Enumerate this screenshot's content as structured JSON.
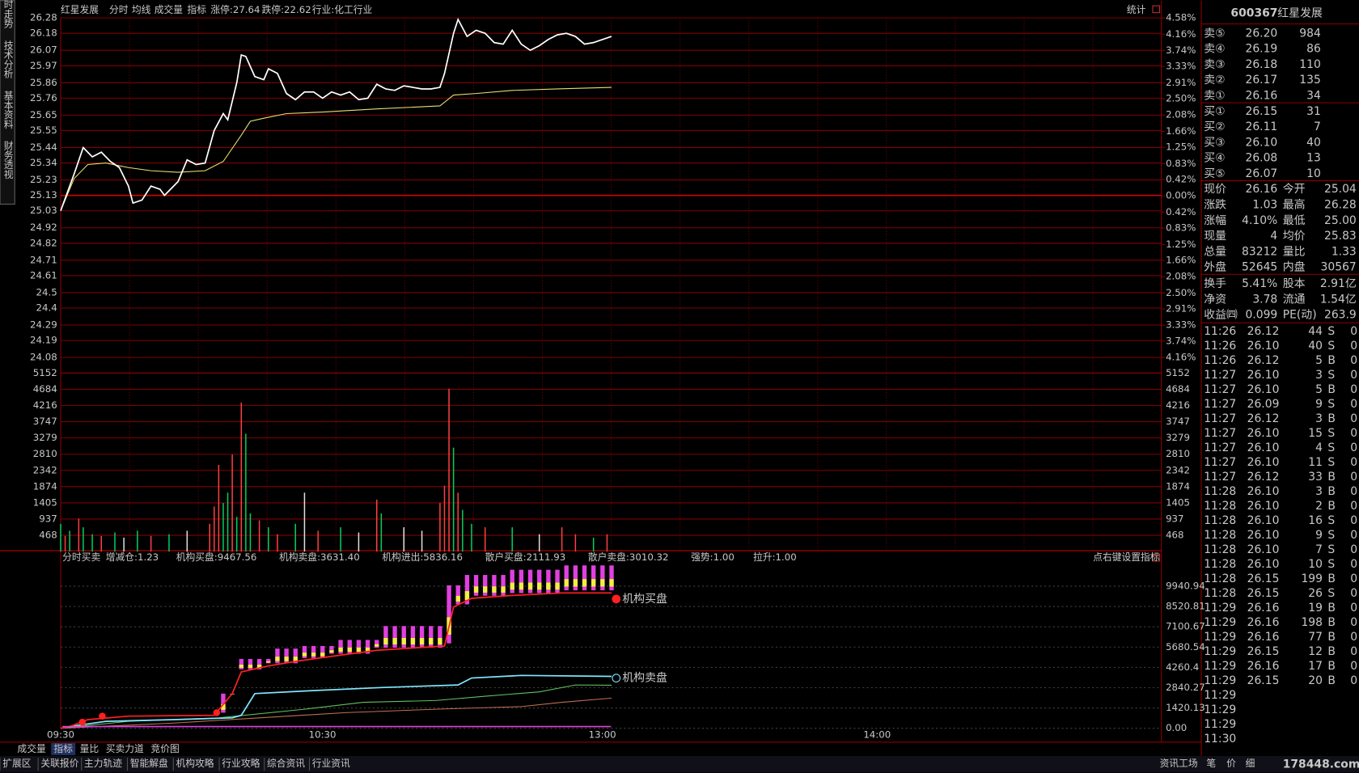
{
  "toolbar": {
    "stock": "红星发展",
    "volume_tab": "成交量",
    "indicator_tab": "指标",
    "limit_up": "涨停:27.64",
    "limit_down": "跌停:22.62",
    "industry": "行业:化工行业",
    "stats": "统计"
  },
  "side_tabs": [
    "分时走势",
    "技术分析",
    "基本资料",
    "财务透视"
  ],
  "chart_data": [
    {
      "type": "line",
      "series": [
        {
          "name": "分时",
          "color": "#ffffff",
          "x": [
            0,
            3,
            5,
            7,
            9,
            11,
            13,
            15,
            16,
            18,
            20,
            22,
            23,
            26,
            28,
            30,
            32,
            34,
            36,
            37,
            39,
            40,
            41,
            43,
            45,
            46,
            48,
            50,
            52,
            54,
            56,
            58,
            60,
            62,
            64,
            66,
            68,
            70,
            72,
            74,
            76,
            78,
            80,
            82,
            84,
            85,
            87,
            88,
            90,
            92,
            94,
            96,
            98,
            100,
            102,
            104,
            106,
            108,
            110,
            112,
            114,
            116,
            118,
            120,
            121,
            122
          ],
          "values": [
            25.03,
            25.27,
            25.44,
            25.38,
            25.41,
            25.35,
            25.31,
            25.19,
            25.08,
            25.1,
            25.19,
            25.17,
            25.13,
            25.22,
            25.36,
            25.33,
            25.34,
            25.55,
            25.66,
            25.62,
            25.86,
            26.04,
            26.03,
            25.9,
            25.88,
            25.95,
            25.92,
            25.79,
            25.75,
            25.8,
            25.8,
            25.76,
            25.8,
            25.78,
            25.8,
            25.75,
            25.76,
            25.85,
            25.82,
            25.81,
            25.84,
            25.83,
            25.82,
            25.82,
            25.83,
            25.92,
            26.18,
            26.27,
            26.16,
            26.2,
            26.18,
            26.12,
            26.11,
            26.2,
            26.11,
            26.07,
            26.1,
            26.14,
            26.17,
            26.18,
            26.16,
            26.11,
            26.12,
            26.14,
            26.15,
            26.16
          ]
        },
        {
          "name": "均线",
          "color": "#e8e070",
          "x": [
            0,
            3,
            6,
            10,
            15,
            20,
            26,
            32,
            36,
            40,
            42,
            45,
            50,
            58,
            70,
            84,
            87,
            92,
            100,
            110,
            122
          ],
          "values": [
            25.03,
            25.24,
            25.33,
            25.34,
            25.31,
            25.29,
            25.28,
            25.29,
            25.35,
            25.52,
            25.61,
            25.63,
            25.66,
            25.67,
            25.69,
            25.71,
            25.78,
            25.79,
            25.81,
            25.82,
            25.83
          ]
        }
      ],
      "ylim": [
        24.08,
        26.28
      ],
      "yticks": [
        26.28,
        26.18,
        26.07,
        25.97,
        25.86,
        25.76,
        25.65,
        25.55,
        25.44,
        25.34,
        25.23,
        25.13,
        25.03,
        24.92,
        24.82,
        24.71,
        24.61,
        24.5,
        24.4,
        24.29,
        24.19,
        24.08
      ],
      "y2lim": [
        -4.16,
        4.58
      ],
      "y2ticks": [
        {
          "value": 4.58,
          "label": "4.58%"
        },
        {
          "value": 4.16,
          "label": "4.16%"
        },
        {
          "value": 3.74,
          "label": "3.74%"
        },
        {
          "value": 3.33,
          "label": "3.33%"
        },
        {
          "value": 2.91,
          "label": "2.91%"
        },
        {
          "value": 2.5,
          "label": "2.50%"
        },
        {
          "value": 2.08,
          "label": "2.08%"
        },
        {
          "value": 1.66,
          "label": "1.66%"
        },
        {
          "value": 1.25,
          "label": "1.25%"
        },
        {
          "value": 0.83,
          "label": "0.83%"
        },
        {
          "value": 0.42,
          "label": "0.42%"
        },
        {
          "value": 0,
          "label": "0.00%"
        },
        {
          "value": -0.42,
          "label": "0.42%"
        },
        {
          "value": -0.83,
          "label": "0.83%"
        },
        {
          "value": -1.25,
          "label": "1.25%"
        },
        {
          "value": -1.66,
          "label": "1.66%"
        },
        {
          "value": -2.08,
          "label": "2.08%"
        },
        {
          "value": -2.5,
          "label": "2.50%"
        },
        {
          "value": -2.91,
          "label": "2.91%"
        },
        {
          "value": -3.33,
          "label": "3.33%"
        },
        {
          "value": -3.74,
          "label": "3.74%"
        },
        {
          "value": -4.16,
          "label": "4.16%"
        }
      ],
      "grid": true
    },
    {
      "type": "bar",
      "series": [
        {
          "name": "成交量",
          "x": [
            0,
            1,
            2,
            4,
            5,
            7,
            9,
            12,
            14,
            17,
            20,
            24,
            28,
            33,
            34,
            35,
            36,
            37,
            38,
            39,
            40,
            41,
            42,
            44,
            46,
            48,
            52,
            54,
            57,
            62,
            66,
            70,
            71,
            76,
            80,
            84,
            85,
            86,
            87,
            88,
            89,
            91,
            94,
            100,
            106,
            111,
            114,
            118,
            121
          ],
          "values": [
            800,
            450,
            600,
            950,
            700,
            500,
            450,
            550,
            400,
            600,
            450,
            500,
            600,
            800,
            1300,
            2500,
            1400,
            1700,
            2800,
            1000,
            4300,
            3400,
            1100,
            900,
            700,
            500,
            800,
            1700,
            600,
            700,
            550,
            1500,
            1100,
            700,
            600,
            1400,
            1900,
            4700,
            3000,
            1700,
            1200,
            800,
            700,
            700,
            500,
            700,
            500,
            400,
            500
          ],
          "colors": [
            "#00d060",
            "#ff4040",
            "#00d060",
            "#ff4040",
            "#00d060",
            "#00d060",
            "#ff4040",
            "#00d060",
            "#e0e0e0",
            "#00d060",
            "#ff4040",
            "#00d060",
            "#e0e0e0",
            "#ff4040",
            "#ff4040",
            "#ff4040",
            "#00d060",
            "#00d060",
            "#ff4040",
            "#00d060",
            "#ff4040",
            "#00d060",
            "#00d060",
            "#ff4040",
            "#00d060",
            "#ff4040",
            "#00d060",
            "#e0e0e0",
            "#ff4040",
            "#00d060",
            "#e0e0e0",
            "#ff4040",
            "#00d060",
            "#e0e0e0",
            "#e0e0e0",
            "#ff4040",
            "#ff4040",
            "#ff4040",
            "#00d060",
            "#ff4040",
            "#00d060",
            "#00d060",
            "#ff4040",
            "#00d060",
            "#e0e0e0",
            "#ff4040",
            "#ff4040",
            "#00d060",
            "#ff4040"
          ]
        }
      ],
      "ylim": [
        0,
        5152
      ],
      "yticks": [
        5152,
        4684,
        4216,
        3747,
        3279,
        2810,
        2342,
        1874,
        1405,
        937,
        468
      ],
      "grid": true
    },
    {
      "type": "line",
      "title": "分时买卖",
      "items": [
        "增减仓:1.23",
        "机构买盘:9467.56",
        "机构卖盘:3631.40",
        "机构进出:5836.16",
        "散户买盘:2111.93",
        "散户卖盘:3010.32",
        "强势:1.00",
        "拉升:1.00"
      ],
      "hint": "点右键设置指标",
      "series": [
        {
          "name": "机构买盘",
          "color": "#ff2020",
          "x": [
            0,
            2,
            6,
            15,
            34,
            38,
            40,
            46,
            53,
            60,
            70,
            85,
            87,
            91,
            99,
            111,
            122
          ],
          "values": [
            0,
            121,
            606,
            849,
            909,
            2424,
            3940,
            4364,
            4728,
            5031,
            5455,
            5758,
            8485,
            9092,
            9273,
            9470,
            9467.56
          ]
        },
        {
          "name": "机构卖盘",
          "color": "#80e8ff",
          "x": [
            0,
            2,
            10,
            25,
            38,
            40,
            43,
            54,
            71,
            88,
            91,
            102,
            122
          ],
          "values": [
            0,
            121,
            485,
            606,
            727,
            909,
            2424,
            2606,
            2849,
            3030,
            3515,
            3697,
            3631.4
          ]
        },
        {
          "color": "#60c060",
          "x": [
            0,
            15,
            35,
            54,
            67,
            83,
            94,
            106,
            114,
            122
          ],
          "values": [
            0,
            485,
            727,
            1333,
            1818,
            1939,
            2242,
            2546,
            3030,
            3010.32
          ]
        },
        {
          "color": "#c07050",
          "x": [
            0,
            25,
            44,
            63,
            83,
            102,
            111,
            122
          ],
          "values": [
            0,
            364,
            727,
            1091,
            1333,
            1515,
            1818,
            2111.93
          ]
        }
      ],
      "bars": {
        "color": "#e040e0",
        "x": [
          36,
          38,
          40,
          42,
          44,
          46,
          48,
          50,
          52,
          54,
          56,
          58,
          60,
          62,
          64,
          66,
          68,
          70,
          72,
          74,
          76,
          78,
          80,
          82,
          84,
          86,
          88,
          90,
          92,
          94,
          96,
          98,
          100,
          102,
          104,
          106,
          108,
          110,
          112,
          114,
          116,
          118,
          120,
          122
        ],
        "values": [
          2424,
          2424,
          4849,
          4849,
          4849,
          4849,
          5576,
          5576,
          5576,
          5758,
          5758,
          5758,
          5758,
          6182,
          6182,
          6182,
          6182,
          6182,
          7152,
          7152,
          7152,
          7152,
          7152,
          7152,
          7152,
          10000,
          10000,
          10728,
          10728,
          10728,
          10728,
          10728,
          11092,
          11092,
          11092,
          11092,
          11092,
          11092,
          11395,
          11395,
          11395,
          11395,
          11395,
          11395
        ]
      },
      "ylim": [
        0,
        11517
      ],
      "yticks": [
        9940.94,
        8520.81,
        7100.67,
        5680.54,
        4260.4,
        2840.27,
        1420.13,
        {
          "value": 0,
          "label": "0.00"
        }
      ],
      "grid": true
    }
  ],
  "time_axis": [
    "09:30",
    "10:30",
    "13:00",
    "14:00"
  ],
  "panel": {
    "code": "600367",
    "name": "红星发展",
    "book": [
      [
        "卖⑤",
        "26.20",
        "984"
      ],
      [
        "卖④",
        "26.19",
        "86"
      ],
      [
        "卖③",
        "26.18",
        "110"
      ],
      [
        "卖②",
        "26.17",
        "135"
      ],
      [
        "卖①",
        "26.16",
        "34"
      ],
      [
        "买①",
        "26.15",
        "31"
      ],
      [
        "买②",
        "26.11",
        "7"
      ],
      [
        "买③",
        "26.10",
        "40"
      ],
      [
        "买④",
        "26.08",
        "13"
      ],
      [
        "买⑤",
        "26.07",
        "10"
      ]
    ],
    "stats": [
      [
        "现价",
        "26.16",
        "今开",
        "25.04"
      ],
      [
        "涨跌",
        "1.03",
        "最高",
        "26.28"
      ],
      [
        "涨幅",
        "4.10%",
        "最低",
        "25.00"
      ],
      [
        "现量",
        "4",
        "均价",
        "25.83"
      ],
      [
        "总量",
        "83212",
        "量比",
        "1.33"
      ],
      [
        "外盘",
        "52645",
        "内盘",
        "30567"
      ],
      [
        "换手",
        "5.41%",
        "股本",
        "2.91亿"
      ],
      [
        "净资",
        "3.78",
        "流通",
        "1.54亿"
      ],
      [
        "收益㈣",
        "0.099",
        "PE(动)",
        "263.9"
      ]
    ],
    "trades": [
      [
        "11:26",
        "26.12",
        "44",
        "S",
        "0"
      ],
      [
        "11:26",
        "26.10",
        "40",
        "S",
        "0"
      ],
      [
        "11:26",
        "26.12",
        "5",
        "B",
        "0"
      ],
      [
        "11:27",
        "26.10",
        "3",
        "S",
        "0"
      ],
      [
        "11:27",
        "26.10",
        "5",
        "B",
        "0"
      ],
      [
        "11:27",
        "26.09",
        "9",
        "S",
        "0"
      ],
      [
        "11:27",
        "26.12",
        "3",
        "B",
        "0"
      ],
      [
        "11:27",
        "26.10",
        "15",
        "S",
        "0"
      ],
      [
        "11:27",
        "26.10",
        "4",
        "S",
        "0"
      ],
      [
        "11:27",
        "26.10",
        "11",
        "S",
        "0"
      ],
      [
        "11:27",
        "26.12",
        "33",
        "B",
        "0"
      ],
      [
        "11:28",
        "26.10",
        "3",
        "B",
        "0"
      ],
      [
        "11:28",
        "26.10",
        "2",
        "B",
        "0"
      ],
      [
        "11:28",
        "26.10",
        "16",
        "S",
        "0"
      ],
      [
        "11:28",
        "26.10",
        "9",
        "S",
        "0"
      ],
      [
        "11:28",
        "26.10",
        "7",
        "S",
        "0"
      ],
      [
        "11:28",
        "26.10",
        "10",
        "S",
        "0"
      ],
      [
        "11:28",
        "26.15",
        "199",
        "B",
        "0"
      ],
      [
        "11:28",
        "26.15",
        "26",
        "S",
        "0"
      ],
      [
        "11:29",
        "26.16",
        "19",
        "B",
        "0"
      ],
      [
        "11:29",
        "26.16",
        "198",
        "B",
        "0"
      ],
      [
        "11:29",
        "26.16",
        "77",
        "B",
        "0"
      ],
      [
        "11:29",
        "26.15",
        "12",
        "B",
        "0"
      ],
      [
        "11:29",
        "26.16",
        "17",
        "B",
        "0"
      ],
      [
        "11:29",
        "26.15",
        "20",
        "B",
        "0"
      ],
      [
        "11:29"
      ],
      [
        "11:29"
      ],
      [
        "11:29"
      ],
      [
        "11:30"
      ]
    ]
  },
  "bottom_tabs": [
    "成交量",
    "指标",
    "量比",
    "买卖力道",
    "竞价图"
  ],
  "bottom_bar": [
    "扩展区",
    "关联报价",
    "主力轨迹",
    "智能解盘",
    "机构攻略",
    "行业攻略",
    "综合资讯",
    "行业资讯"
  ],
  "bottom_right": [
    "资讯工场",
    "笔",
    "价",
    "细"
  ],
  "watermark": "178448.com"
}
